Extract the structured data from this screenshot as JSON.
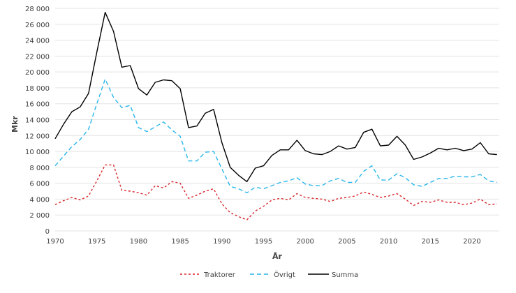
{
  "chart_data": {
    "type": "line",
    "title": "",
    "xlabel": "År",
    "ylabel": "Mkr",
    "xlim": [
      1970,
      2023
    ],
    "ylim": [
      0,
      28000
    ],
    "yticks": [
      "0",
      "2 000",
      "4 000",
      "6 000",
      "8 000",
      "10 000",
      "12 000",
      "14 000",
      "16 000",
      "18 000",
      "20 000",
      "22 000",
      "24 000",
      "26 000",
      "28 000"
    ],
    "xticks": [
      "1970",
      "1975",
      "1980",
      "1985",
      "1990",
      "1995",
      "2000",
      "2005",
      "2010",
      "2015",
      "2020"
    ],
    "grid": "horizontal",
    "legend": "bottom",
    "x": [
      1970,
      1971,
      1972,
      1973,
      1974,
      1975,
      1976,
      1977,
      1978,
      1979,
      1980,
      1981,
      1982,
      1983,
      1984,
      1985,
      1986,
      1987,
      1988,
      1989,
      1990,
      1991,
      1992,
      1993,
      1994,
      1995,
      1996,
      1997,
      1998,
      1999,
      2000,
      2001,
      2002,
      2003,
      2004,
      2005,
      2006,
      2007,
      2008,
      2009,
      2010,
      2011,
      2012,
      2013,
      2014,
      2015,
      2016,
      2017,
      2018,
      2019,
      2020,
      2021,
      2022,
      2023
    ],
    "series": [
      {
        "name": "Traktorer",
        "color": "#d9262b",
        "dash": "3,3",
        "values": [
          3300,
          3800,
          4200,
          3900,
          4400,
          6300,
          8300,
          8300,
          5100,
          5000,
          4800,
          4500,
          5700,
          5400,
          6200,
          6000,
          4100,
          4500,
          5000,
          5300,
          3400,
          2300,
          1800,
          1400,
          2500,
          3100,
          3900,
          4100,
          3900,
          4700,
          4200,
          4100,
          4000,
          3700,
          4100,
          4200,
          4400,
          4900,
          4600,
          4200,
          4400,
          4700,
          4000,
          3200,
          3700,
          3600,
          3900,
          3600,
          3600,
          3300,
          3500,
          4000,
          3300,
          3400
        ]
      },
      {
        "name": "Övrigt",
        "color": "#29b6ec",
        "dash": "6,4",
        "values": [
          8200,
          9400,
          10600,
          11500,
          12800,
          16000,
          19100,
          16800,
          15500,
          15800,
          13000,
          12500,
          13100,
          13700,
          12700,
          11900,
          8800,
          8800,
          9900,
          10000,
          7800,
          5600,
          5300,
          4800,
          5500,
          5300,
          5700,
          6100,
          6300,
          6700,
          5900,
          5700,
          5700,
          6300,
          6600,
          6100,
          6100,
          7500,
          8200,
          6400,
          6400,
          7200,
          6700,
          5800,
          5600,
          6100,
          6600,
          6600,
          6900,
          6800,
          6800,
          7100,
          6300,
          6100
        ]
      },
      {
        "name": "Summa",
        "color": "#000000",
        "dash": "",
        "values": [
          11600,
          13400,
          15000,
          15600,
          17300,
          22500,
          27500,
          25100,
          20600,
          20800,
          17900,
          17100,
          18700,
          19000,
          18900,
          17900,
          13000,
          13200,
          14800,
          15300,
          11100,
          8000,
          7000,
          6200,
          7900,
          8200,
          9500,
          10200,
          10200,
          11400,
          10100,
          9700,
          9600,
          10000,
          10700,
          10300,
          10500,
          12400,
          12800,
          10700,
          10800,
          11900,
          10800,
          9000,
          9300,
          9800,
          10400,
          10200,
          10400,
          10100,
          10300,
          11100,
          9700,
          9600
        ]
      }
    ]
  }
}
